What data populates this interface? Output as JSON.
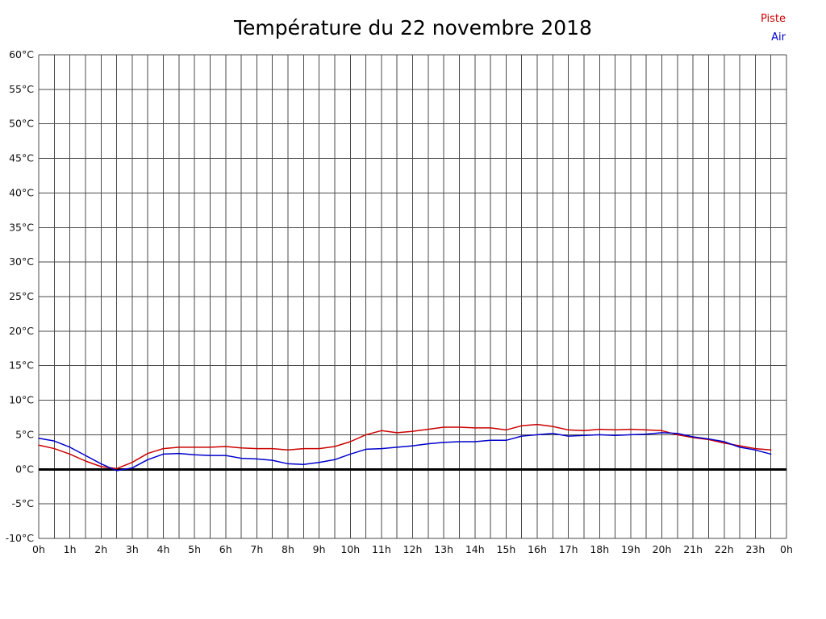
{
  "chart_data": {
    "type": "line",
    "title": "Température du 22 novembre 2018",
    "xlabel": "",
    "ylabel": "",
    "ylim": [
      -10,
      60
    ],
    "y_tick_step": 5,
    "xlim_hours": [
      0,
      24
    ],
    "x_minor_step_hours": 0.5,
    "grid": true,
    "zero_line": true,
    "legend_position": "top-right",
    "x_tick_labels": [
      "0h",
      "1h",
      "2h",
      "3h",
      "4h",
      "5h",
      "6h",
      "7h",
      "8h",
      "9h",
      "10h",
      "11h",
      "12h",
      "13h",
      "14h",
      "15h",
      "16h",
      "17h",
      "18h",
      "19h",
      "20h",
      "21h",
      "22h",
      "23h",
      "0h"
    ],
    "y_tick_labels": [
      "60°C",
      "55°C",
      "50°C",
      "45°C",
      "40°C",
      "35°C",
      "30°C",
      "25°C",
      "20°C",
      "15°C",
      "10°C",
      "5°C",
      "0°C",
      "-5°C",
      "-10°C"
    ],
    "x": [
      0,
      0.5,
      1,
      1.5,
      2,
      2.5,
      3,
      3.5,
      4,
      4.5,
      5,
      5.5,
      6,
      6.5,
      7,
      7.5,
      8,
      8.5,
      9,
      9.5,
      10,
      10.5,
      11,
      11.5,
      12,
      12.5,
      13,
      13.5,
      14,
      14.5,
      15,
      15.5,
      16,
      16.5,
      17,
      17.5,
      18,
      18.5,
      19,
      19.5,
      20,
      20.5,
      21,
      21.5,
      22,
      22.5,
      23,
      23.5
    ],
    "series": [
      {
        "name": "Piste",
        "color": "#cc0000",
        "values": [
          3.5,
          3.0,
          2.2,
          1.2,
          0.4,
          0.1,
          1.0,
          2.3,
          3.0,
          3.2,
          3.2,
          3.2,
          3.3,
          3.1,
          3.0,
          3.0,
          2.8,
          3.0,
          3.0,
          3.3,
          4.0,
          5.0,
          5.6,
          5.3,
          5.5,
          5.8,
          6.1,
          6.1,
          6.0,
          6.0,
          5.7,
          6.3,
          6.5,
          6.2,
          5.7,
          5.6,
          5.8,
          5.7,
          5.8,
          5.7,
          5.6,
          5.0,
          4.6,
          4.3,
          3.8,
          3.4,
          3.0,
          2.8
        ]
      },
      {
        "name": "Air",
        "color": "#0000cc",
        "values": [
          4.5,
          4.1,
          3.2,
          2.0,
          0.8,
          -0.2,
          0.2,
          1.4,
          2.2,
          2.3,
          2.1,
          2.0,
          2.0,
          1.6,
          1.5,
          1.3,
          0.8,
          0.7,
          1.0,
          1.4,
          2.2,
          2.9,
          3.0,
          3.2,
          3.4,
          3.7,
          3.9,
          4.0,
          4.0,
          4.2,
          4.2,
          4.8,
          5.0,
          5.2,
          4.8,
          4.9,
          5.0,
          4.9,
          5.0,
          5.1,
          5.3,
          5.2,
          4.7,
          4.4,
          4.0,
          3.2,
          2.8,
          2.2
        ]
      }
    ]
  }
}
